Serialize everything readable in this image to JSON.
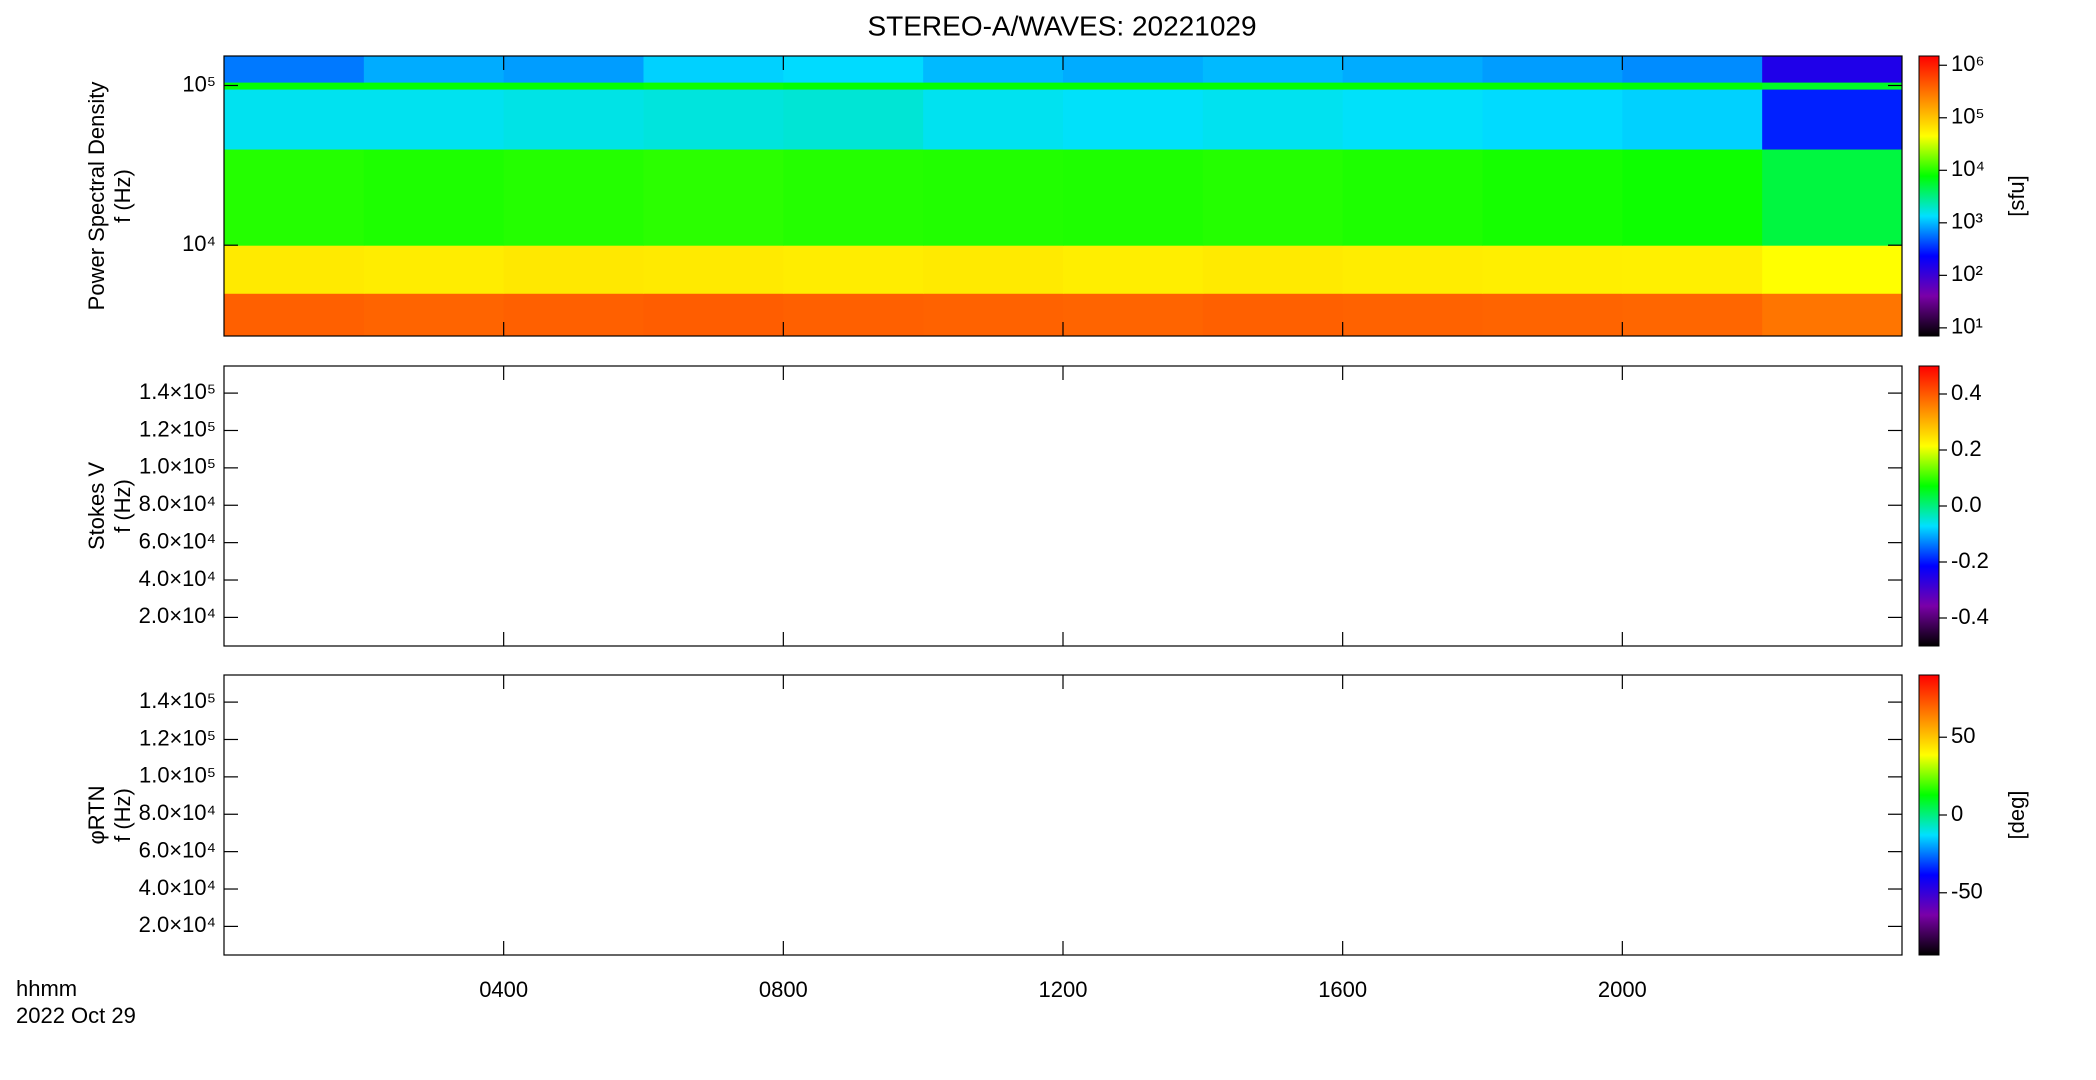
{
  "title": "STEREO-A/WAVES: 20221029",
  "time_label": "hhmm",
  "date": "2022 Oct 29",
  "chart_data": [
    {
      "type": "heatmap",
      "ylabel": [
        "Power Spectral Density",
        "f (Hz)"
      ],
      "xlim": [
        0,
        24
      ],
      "xticks": [
        {
          "value": 4,
          "label": "0400"
        },
        {
          "value": 8,
          "label": "0800"
        },
        {
          "value": 12,
          "label": "1200"
        },
        {
          "value": 16,
          "label": "1600"
        },
        {
          "value": 20,
          "label": "2000"
        }
      ],
      "ylim": [
        2700,
        153000
      ],
      "yscale": "log",
      "yticks": [
        {
          "value": 10000,
          "label": "10⁴"
        },
        {
          "value": 100000,
          "label": "10⁵"
        }
      ],
      "x": [
        0,
        2,
        4,
        6,
        8,
        10,
        12,
        14,
        16,
        18,
        20,
        22,
        24
      ],
      "y": [
        2700,
        5000,
        10000,
        40000,
        95000,
        105000,
        153000
      ],
      "z": [
        [
          400000,
          380000,
          400000,
          420000,
          400000,
          390000,
          380000,
          400000,
          390000,
          380000,
          370000,
          300000
        ],
        [
          60000,
          58000,
          62000,
          60000,
          58000,
          60000,
          57000,
          60000,
          58000,
          56000,
          55000,
          45000
        ],
        [
          10000,
          9500,
          10000,
          10500,
          10000,
          9800,
          9600,
          10000,
          9500,
          9000,
          8500,
          5000
        ],
        [
          1500,
          1500,
          1600,
          1700,
          1800,
          1500,
          1400,
          1500,
          1400,
          1300,
          1200,
          300
        ],
        [
          8000,
          8000,
          8000,
          8500,
          8000,
          8000,
          8000,
          8000,
          8000,
          8000,
          7500,
          6000
        ],
        [
          600,
          900,
          800,
          1200,
          1300,
          1000,
          900,
          1000,
          900,
          800,
          700,
          150
        ]
      ],
      "clim": [
        7,
        1500000
      ],
      "cscale": "log",
      "cticks": [
        {
          "value": 10,
          "label": "10¹"
        },
        {
          "value": 100,
          "label": "10²"
        },
        {
          "value": 1000,
          "label": "10³"
        },
        {
          "value": 10000,
          "label": "10⁴"
        },
        {
          "value": 100000,
          "label": "10⁵"
        },
        {
          "value": 1000000,
          "label": "10⁶"
        }
      ],
      "clabel": "[sfu]",
      "colormap": [
        "#000000",
        "#7a00a8",
        "#0000ff",
        "#00e0ff",
        "#00ff00",
        "#ffff00",
        "#ff8000",
        "#ff0000"
      ]
    },
    {
      "type": "heatmap",
      "ylabel": [
        "Stokes V",
        "f (Hz)"
      ],
      "xlim": [
        0,
        24
      ],
      "xticks": [
        {
          "value": 4,
          "label": "0400"
        },
        {
          "value": 8,
          "label": "0800"
        },
        {
          "value": 12,
          "label": "1200"
        },
        {
          "value": 16,
          "label": "1600"
        },
        {
          "value": 20,
          "label": "2000"
        }
      ],
      "ylim": [
        4700,
        154500
      ],
      "yscale": "linear",
      "yticks": [
        {
          "value": 20000,
          "label": "2.0×10⁴"
        },
        {
          "value": 40000,
          "label": "4.0×10⁴"
        },
        {
          "value": 60000,
          "label": "6.0×10⁴"
        },
        {
          "value": 80000,
          "label": "8.0×10⁴"
        },
        {
          "value": 100000,
          "label": "1.0×10⁵"
        },
        {
          "value": 120000,
          "label": "1.2×10⁵"
        },
        {
          "value": 140000,
          "label": "1.4×10⁵"
        }
      ],
      "clim": [
        -0.5,
        0.5
      ],
      "cscale": "linear",
      "cticks": [
        -0.4,
        -0.2,
        {
          "value": 0,
          "label": "0.0"
        },
        0.2,
        0.4
      ],
      "colormap": [
        "#000000",
        "#7a00a8",
        "#0000ff",
        "#00e0ff",
        "#00ff00",
        "#ffff00",
        "#ff8000",
        "#ff0000"
      ]
    },
    {
      "type": "heatmap",
      "ylabel": [
        "φRTN",
        "f (Hz)"
      ],
      "xlim": [
        0,
        24
      ],
      "xticks": [
        {
          "value": 4,
          "label": "0400"
        },
        {
          "value": 8,
          "label": "0800"
        },
        {
          "value": 12,
          "label": "1200"
        },
        {
          "value": 16,
          "label": "1600"
        },
        {
          "value": 20,
          "label": "2000"
        }
      ],
      "ylim": [
        4700,
        154500
      ],
      "yscale": "linear",
      "yticks": [
        {
          "value": 20000,
          "label": "2.0×10⁴"
        },
        {
          "value": 40000,
          "label": "4.0×10⁴"
        },
        {
          "value": 60000,
          "label": "6.0×10⁴"
        },
        {
          "value": 80000,
          "label": "8.0×10⁴"
        },
        {
          "value": 100000,
          "label": "1.0×10⁵"
        },
        {
          "value": 120000,
          "label": "1.2×10⁵"
        },
        {
          "value": 140000,
          "label": "1.4×10⁵"
        }
      ],
      "clim": [
        -90,
        90
      ],
      "cscale": "linear",
      "cticks": [
        -50,
        0,
        50
      ],
      "clabel": "[deg]",
      "colormap": [
        "#000000",
        "#7a00a8",
        "#0000ff",
        "#00e0ff",
        "#00ff00",
        "#ffff00",
        "#ff8000",
        "#ff0000"
      ]
    }
  ]
}
